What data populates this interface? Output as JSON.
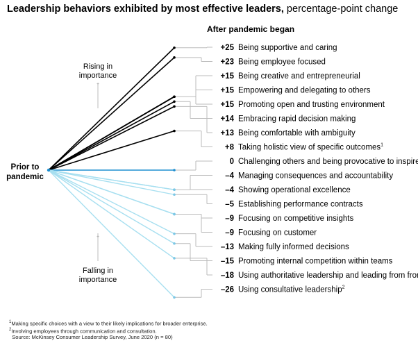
{
  "title": {
    "bold": "Leadership behaviors exhibited by most effective leaders,",
    "rest": " percentage-point change"
  },
  "colors": {
    "rising": "#000000",
    "neutral": "#1f8fd0",
    "falling": "#a7dff0",
    "bracket": "#bbbbbb",
    "arrow_text": "#888888"
  },
  "chart_data": {
    "type": "line",
    "title": "Leadership behaviors exhibited by most effective leaders, percentage-point change",
    "column_header": "After pandemic began",
    "origin_label": [
      "Prior to",
      "pandemic"
    ],
    "rising_label": [
      "Rising in",
      "importance"
    ],
    "falling_label": [
      "Falling in",
      "importance"
    ],
    "items": [
      {
        "value": 25,
        "display": "+25",
        "label": "Being supportive and caring",
        "sup": ""
      },
      {
        "value": 23,
        "display": "+23",
        "label": "Being employee focused",
        "sup": ""
      },
      {
        "value": 15,
        "display": "+15",
        "label": "Being creative and entrepreneurial",
        "sup": ""
      },
      {
        "value": 15,
        "display": "+15",
        "label": "Empowering and delegating to others",
        "sup": ""
      },
      {
        "value": 15,
        "display": "+15",
        "label": "Promoting open and trusting environment",
        "sup": ""
      },
      {
        "value": 14,
        "display": "+14",
        "label": "Embracing rapid decision making",
        "sup": ""
      },
      {
        "value": 13,
        "display": "+13",
        "label": "Being comfortable with ambiguity",
        "sup": ""
      },
      {
        "value": 8,
        "display": "+8",
        "label": "Taking holistic view of specific outcomes",
        "sup": "1"
      },
      {
        "value": 0,
        "display": "0",
        "label": "Challenging others and being provocative to inspire",
        "sup": ""
      },
      {
        "value": -4,
        "display": "–4",
        "label": "Managing consequences and accountability",
        "sup": ""
      },
      {
        "value": -4,
        "display": "–4",
        "label": "Showing operational excellence",
        "sup": ""
      },
      {
        "value": -5,
        "display": "–5",
        "label": "Establishing performance contracts",
        "sup": ""
      },
      {
        "value": -9,
        "display": "–9",
        "label": "Focusing on competitive insights",
        "sup": ""
      },
      {
        "value": -9,
        "display": "–9",
        "label": "Focusing on customer",
        "sup": ""
      },
      {
        "value": -13,
        "display": "–13",
        "label": "Making fully informed decisions",
        "sup": ""
      },
      {
        "value": -15,
        "display": "–15",
        "label": "Promoting internal competition within teams",
        "sup": ""
      },
      {
        "value": -18,
        "display": "–18",
        "label": "Using authoritative leadership and leading from front",
        "sup": ""
      },
      {
        "value": -26,
        "display": "–26",
        "label": "Using consultative leadership",
        "sup": "2"
      }
    ]
  },
  "footnotes": {
    "note1": "Making specific choices with a view to their likely implications for broader enterprise.",
    "note2": "Involving employees through communication and consultation.",
    "source": "Source: McKinsey Consumer Leadership Survey, June 2020 (n = 80)"
  }
}
